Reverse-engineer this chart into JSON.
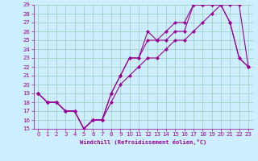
{
  "xlabel": "Windchill (Refroidissement éolien,°C)",
  "bg_color": "#cceeff",
  "grid_color": "#99ccbb",
  "line_color": "#990099",
  "xlim": [
    -0.5,
    23.5
  ],
  "ylim": [
    15,
    29
  ],
  "xticks": [
    0,
    1,
    2,
    3,
    4,
    5,
    6,
    7,
    8,
    9,
    10,
    11,
    12,
    13,
    14,
    15,
    16,
    17,
    18,
    19,
    20,
    21,
    22,
    23
  ],
  "yticks": [
    15,
    16,
    17,
    18,
    19,
    20,
    21,
    22,
    23,
    24,
    25,
    26,
    27,
    28,
    29
  ],
  "curve1_x": [
    0,
    1,
    2,
    3,
    4,
    5,
    6,
    7,
    8,
    9,
    10,
    11,
    12,
    13,
    14,
    15,
    16,
    17,
    18,
    19,
    20,
    21,
    22,
    23
  ],
  "curve1_y": [
    19,
    18,
    18,
    17,
    17,
    15,
    16,
    16,
    18,
    20,
    21,
    22,
    23,
    23,
    24,
    25,
    25,
    26,
    27,
    28,
    29,
    29,
    29,
    22
  ],
  "curve2_x": [
    0,
    1,
    2,
    3,
    4,
    5,
    6,
    7,
    8,
    9,
    10,
    11,
    12,
    13,
    14,
    15,
    16,
    17,
    18,
    19,
    20,
    21,
    22,
    23
  ],
  "curve2_y": [
    19,
    18,
    18,
    17,
    17,
    15,
    16,
    16,
    19,
    21,
    23,
    23,
    26,
    25,
    26,
    27,
    27,
    29,
    29,
    29,
    29,
    27,
    23,
    22
  ],
  "curve3_x": [
    0,
    1,
    2,
    3,
    4,
    5,
    6,
    7,
    8,
    9,
    10,
    11,
    12,
    13,
    14,
    15,
    16,
    17,
    18,
    19,
    20,
    21,
    22,
    23
  ],
  "curve3_y": [
    19,
    18,
    18,
    17,
    17,
    15,
    16,
    16,
    19,
    21,
    23,
    23,
    25,
    25,
    25,
    26,
    26,
    29,
    29,
    29,
    29,
    27,
    23,
    22
  ],
  "tick_fontsize": 5,
  "xlabel_fontsize": 5,
  "marker_size": 2.5,
  "line_width": 0.8
}
